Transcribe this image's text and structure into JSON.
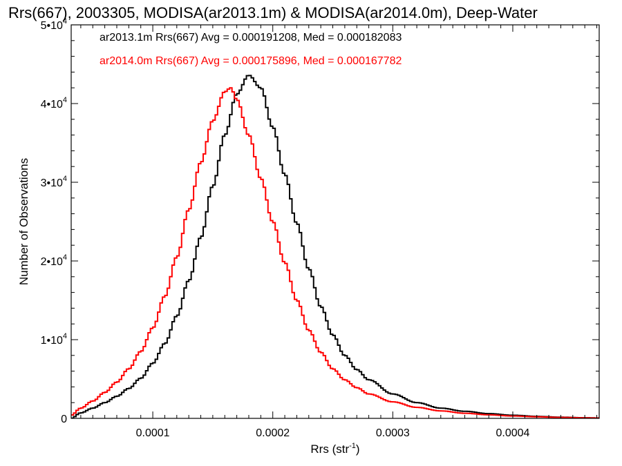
{
  "chart_data": {
    "type": "line",
    "title": "Rrs(667), 2003305, MODISA(ar2013.1m) & MODISA(ar2014.0m), Deep-Water",
    "xlabel": "Rrs (str",
    "xlabel_exp": "-1",
    "xlabel_close": ")",
    "ylabel": "Number of Observations",
    "xlim": [
      3.2e-05,
      0.000472
    ],
    "ylim": [
      0,
      50000
    ],
    "grid": false,
    "legend_position": "top-left",
    "x_ticks": [
      {
        "value": 0.0001,
        "label": "0.0001"
      },
      {
        "value": 0.0002,
        "label": "0.0002"
      },
      {
        "value": 0.0003,
        "label": "0.0003"
      },
      {
        "value": 0.0004,
        "label": "0.0004"
      }
    ],
    "y_ticks": [
      {
        "value": 0,
        "label": "0",
        "exp": ""
      },
      {
        "value": 10000,
        "label": "1•10",
        "exp": "4"
      },
      {
        "value": 20000,
        "label": "2•10",
        "exp": "4"
      },
      {
        "value": 30000,
        "label": "3•10",
        "exp": "4"
      },
      {
        "value": 40000,
        "label": "4•10",
        "exp": "4"
      },
      {
        "value": 50000,
        "label": "5•10",
        "exp": "4"
      }
    ],
    "series": [
      {
        "name": "ar2013.1m Rrs(667) Avg = 0.000191208, Med = 0.000182083",
        "color": "#000000",
        "points": [
          [
            3.2e-05,
            0
          ],
          [
            4e-05,
            700
          ],
          [
            5e-05,
            1300
          ],
          [
            6e-05,
            2000
          ],
          [
            7e-05,
            2800
          ],
          [
            8e-05,
            3800
          ],
          [
            9e-05,
            5100
          ],
          [
            0.0001,
            7000
          ],
          [
            0.00011,
            9500
          ],
          [
            0.00012,
            13000
          ],
          [
            0.00013,
            17500
          ],
          [
            0.00014,
            23000
          ],
          [
            0.00015,
            29500
          ],
          [
            0.00016,
            36000
          ],
          [
            0.00017,
            41200
          ],
          [
            0.00018,
            43600
          ],
          [
            0.00019,
            42000
          ],
          [
            0.0002,
            37000
          ],
          [
            0.00021,
            31000
          ],
          [
            0.00022,
            24800
          ],
          [
            0.00023,
            19000
          ],
          [
            0.00024,
            14200
          ],
          [
            0.00025,
            10600
          ],
          [
            0.00026,
            8000
          ],
          [
            0.00027,
            6200
          ],
          [
            0.00028,
            4900
          ],
          [
            0.0003,
            3100
          ],
          [
            0.00032,
            2000
          ],
          [
            0.00034,
            1300
          ],
          [
            0.00036,
            900
          ],
          [
            0.00038,
            600
          ],
          [
            0.0004,
            400
          ],
          [
            0.00042,
            250
          ],
          [
            0.00044,
            150
          ],
          [
            0.00046,
            80
          ],
          [
            0.000472,
            50
          ]
        ]
      },
      {
        "name": "ar2014.0m Rrs(667) Avg = 0.000175896, Med = 0.000167782",
        "color": "#ff0000",
        "points": [
          [
            3.2e-05,
            400
          ],
          [
            4e-05,
            1300
          ],
          [
            5e-05,
            2200
          ],
          [
            6e-05,
            3300
          ],
          [
            7e-05,
            4600
          ],
          [
            8e-05,
            6300
          ],
          [
            9e-05,
            8500
          ],
          [
            0.0001,
            11500
          ],
          [
            0.00011,
            15500
          ],
          [
            0.00012,
            20500
          ],
          [
            0.00013,
            26500
          ],
          [
            0.00014,
            32500
          ],
          [
            0.00015,
            37800
          ],
          [
            0.00016,
            41500
          ],
          [
            0.000165,
            42000
          ],
          [
            0.00017,
            40500
          ],
          [
            0.00018,
            36000
          ],
          [
            0.00019,
            30500
          ],
          [
            0.0002,
            25000
          ],
          [
            0.00021,
            19800
          ],
          [
            0.00022,
            15000
          ],
          [
            0.00023,
            11200
          ],
          [
            0.00024,
            8400
          ],
          [
            0.00025,
            6300
          ],
          [
            0.00026,
            4900
          ],
          [
            0.00027,
            3900
          ],
          [
            0.00028,
            3100
          ],
          [
            0.0003,
            2100
          ],
          [
            0.00032,
            1400
          ],
          [
            0.00034,
            950
          ],
          [
            0.00036,
            650
          ],
          [
            0.00038,
            450
          ],
          [
            0.0004,
            300
          ],
          [
            0.00042,
            200
          ],
          [
            0.00044,
            120
          ],
          [
            0.00046,
            70
          ],
          [
            0.000472,
            40
          ]
        ]
      }
    ]
  }
}
